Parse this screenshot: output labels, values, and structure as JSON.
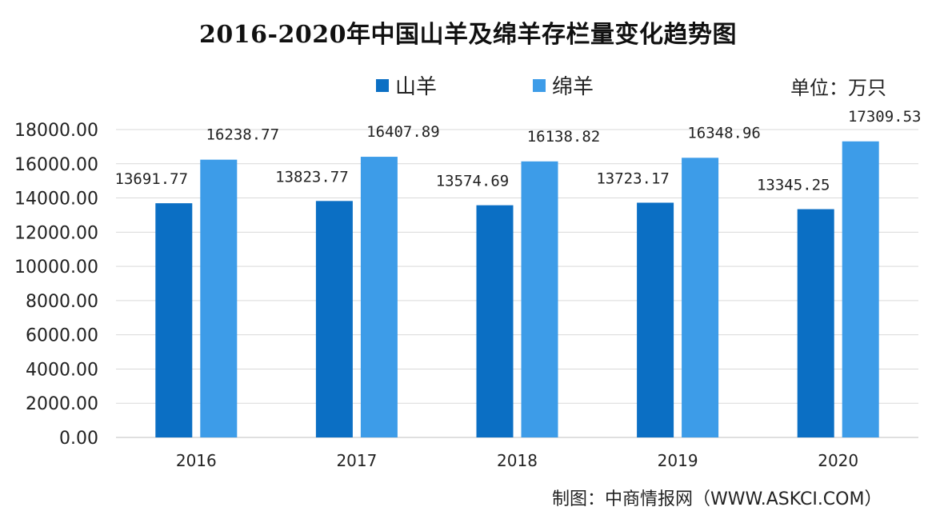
{
  "chart_data": {
    "type": "bar",
    "title": "2016-2020年中国山羊及绵羊存栏量变化趋势图",
    "unit_label": "单位：万只",
    "source": "制图：中商情报网（WWW.ASKCI.COM）",
    "categories": [
      "2016",
      "2017",
      "2018",
      "2019",
      "2020"
    ],
    "series": [
      {
        "name": "山羊",
        "color": "#0b6fc4",
        "values": [
          13691.77,
          13823.77,
          13574.69,
          13723.17,
          13345.25
        ],
        "labels": [
          "13691.77",
          "13823.77",
          "13574.69",
          "13723.17",
          "13345.25"
        ]
      },
      {
        "name": "绵羊",
        "color": "#3d9ce8",
        "values": [
          16238.77,
          16407.89,
          16138.82,
          16348.96,
          17309.53
        ],
        "labels": [
          "16238.77",
          "16407.89",
          "16138.82",
          "16348.96",
          "17309.53"
        ]
      }
    ],
    "ylim": [
      0,
      18000
    ],
    "yticks": [
      0,
      2000,
      4000,
      6000,
      8000,
      10000,
      12000,
      14000,
      16000,
      18000
    ],
    "ytick_labels": [
      "0.00",
      "2000.00",
      "4000.00",
      "6000.00",
      "8000.00",
      "10000.00",
      "12000.00",
      "14000.00",
      "16000.00",
      "18000.00"
    ],
    "grid": true,
    "legend_position": "top-center"
  }
}
